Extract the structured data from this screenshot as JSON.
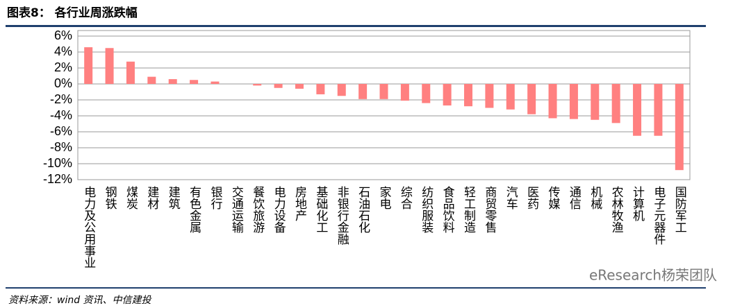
{
  "chart_data": {
    "type": "bar",
    "title": "图表8：  各行业周涨跌幅",
    "source": "资料来源：wind 资讯、中信建投",
    "watermark": "eResearch杨荣团队",
    "categories": [
      "电力及公用事业",
      "钢铁",
      "煤炭",
      "建材",
      "建筑",
      "有色金属",
      "银行",
      "交通运输",
      "餐饮旅游",
      "电力设备",
      "房地产",
      "基础化工",
      "非银行金融",
      "石油石化",
      "家电",
      "综合",
      "纺织服装",
      "食品饮料",
      "轻工制造",
      "商贸零售",
      "汽车",
      "医药",
      "传媒",
      "通信",
      "机械",
      "农林牧渔",
      "计算机",
      "电子元器件",
      "国防军工"
    ],
    "values": [
      4.6,
      4.5,
      2.8,
      0.9,
      0.6,
      0.5,
      0.3,
      0.0,
      -0.2,
      -0.5,
      -0.6,
      -1.3,
      -1.5,
      -1.9,
      -1.9,
      -2.1,
      -2.4,
      -2.7,
      -2.8,
      -3.0,
      -3.2,
      -3.8,
      -4.3,
      -4.4,
      -4.5,
      -4.9,
      -6.5,
      -6.5,
      -10.8
    ],
    "color": "#ff8080",
    "ylim": [
      -12,
      6
    ],
    "yticks": [
      {
        "value": -12,
        "label": "-12%"
      },
      {
        "value": -10,
        "label": "-10%"
      },
      {
        "value": -8,
        "label": "-8%"
      },
      {
        "value": -6,
        "label": "-6%"
      },
      {
        "value": -4,
        "label": "-4%"
      },
      {
        "value": -2,
        "label": "-2%"
      },
      {
        "value": 0,
        "label": "0%"
      },
      {
        "value": 2,
        "label": "2%"
      },
      {
        "value": 4,
        "label": "4%"
      },
      {
        "value": 6,
        "label": "6%"
      }
    ],
    "grid": true
  }
}
